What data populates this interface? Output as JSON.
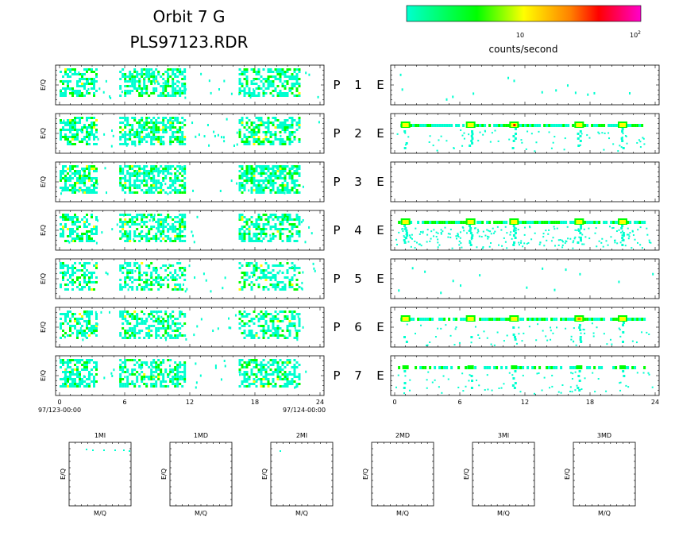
{
  "header": {
    "title_line1": "Orbit 7 G",
    "title_line2": "PLS97123.RDR"
  },
  "colorbar": {
    "tick_10": "10",
    "tick_100_base": "10",
    "tick_100_exp": "2",
    "label": "counts/second",
    "colors": [
      "#00ffd0",
      "#00ff00",
      "#ffff00",
      "#ff8000",
      "#ff0000",
      "#ff00cc"
    ],
    "scale": "log"
  },
  "axes": {
    "ylabel": "E/Q",
    "left_ticks": [
      "0",
      "6",
      "12",
      "18",
      "24"
    ],
    "left_date_start": "97/123-00:00",
    "left_date_end": "97/124-00:00",
    "right_ticks": [
      "0",
      "6",
      "12",
      "18",
      "24"
    ]
  },
  "rows": [
    {
      "p": "P",
      "n": "1",
      "e": "E"
    },
    {
      "p": "P",
      "n": "2",
      "e": "E"
    },
    {
      "p": "P",
      "n": "3",
      "e": "E"
    },
    {
      "p": "P",
      "n": "4",
      "e": "E"
    },
    {
      "p": "P",
      "n": "5",
      "e": "E"
    },
    {
      "p": "P",
      "n": "6",
      "e": "E"
    },
    {
      "p": "P",
      "n": "7",
      "e": "E"
    }
  ],
  "bottom_panels": [
    {
      "title": "1MI",
      "xlabel": "M/Q",
      "ylabel": "E/Q"
    },
    {
      "title": "1MD",
      "xlabel": "M/Q",
      "ylabel": "E/Q"
    },
    {
      "title": "2MI",
      "xlabel": "M/Q",
      "ylabel": "E/Q"
    },
    {
      "title": "2MD",
      "xlabel": "M/Q",
      "ylabel": "E/Q"
    },
    {
      "title": "3MI",
      "xlabel": "M/Q",
      "ylabel": "E/Q"
    },
    {
      "title": "3MD",
      "xlabel": "M/Q",
      "ylabel": "E/Q"
    }
  ],
  "chart_data": {
    "type": "heatmap",
    "x_range_hours": [
      0,
      24
    ],
    "x_tick_values": [
      0,
      6,
      12,
      18,
      24
    ],
    "color_scale": "log",
    "color_range": [
      1,
      100
    ],
    "activity_bands_hours": {
      "left_panels": [
        [
          0,
          3.5
        ],
        [
          5.5,
          11.5
        ],
        [
          16.5,
          22.0
        ]
      ],
      "right_panels_bands": [
        1,
        7,
        11,
        17,
        21
      ]
    },
    "left_rows_fill_fraction": [
      0.55,
      0.6,
      0.65,
      0.55,
      0.45,
      0.5,
      0.55
    ],
    "right_rows_activity": [
      "sparse",
      "band",
      "empty",
      "band-wide",
      "sparse",
      "band",
      "band-light"
    ]
  }
}
